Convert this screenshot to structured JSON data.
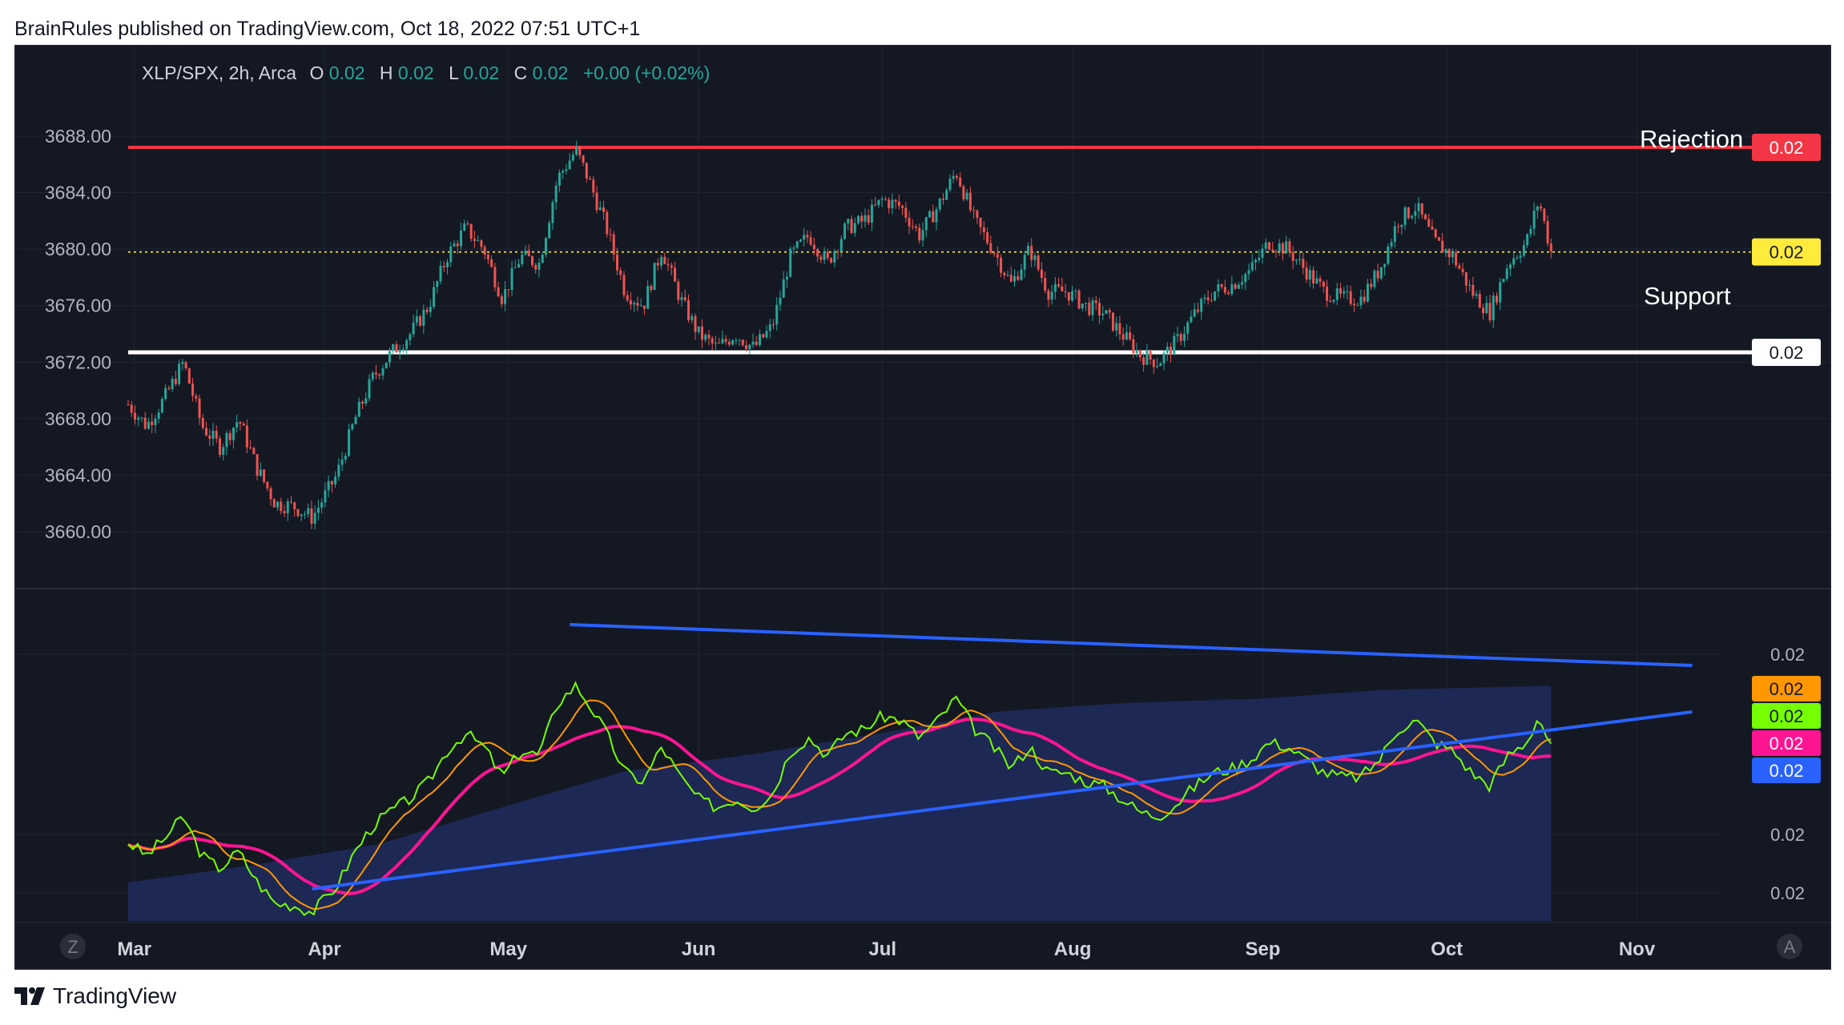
{
  "header": {
    "publisher_line": "BrainRules published on TradingView.com, Oct 18, 2022 07:51 UTC+1"
  },
  "legend": {
    "symbol": "XLP/SPX, 2h, Arca",
    "o_label": "O",
    "o_value": "0.02",
    "h_label": "H",
    "h_value": "0.02",
    "l_label": "L",
    "l_value": "0.02",
    "c_label": "C",
    "c_value": "0.02",
    "change": "+0.00 (+0.02%)"
  },
  "annotations": {
    "rejection": "Rejection",
    "support": "Support"
  },
  "price_tags": {
    "rejection": "0.02",
    "current": "0.02",
    "support": "0.02"
  },
  "indicator_tags": [
    "0.02",
    "0.02",
    "0.02",
    "0.02",
    "0.02"
  ],
  "indicator_axis_labels": [
    "0.02",
    "0.02",
    "0.02"
  ],
  "x_labels": [
    "Mar",
    "Apr",
    "May",
    "Jun",
    "Jul",
    "Aug",
    "Sep",
    "Oct",
    "Nov"
  ],
  "corner_buttons": {
    "left": "Z",
    "right": "A"
  },
  "footer": {
    "brand": "TradingView"
  },
  "colors": {
    "background": "#141823",
    "up": "#26a69a",
    "down": "#ef5350",
    "rejection_line": "#f23645",
    "support_line": "#ffffff",
    "current_line": "#ffeb3b",
    "trendline": "#2962ff",
    "fast_line": "#76ff03",
    "orange_ma": "#ff9800",
    "magenta_ma": "#ff1493",
    "area_fill": "#1e2c5e"
  },
  "chart_data": {
    "type": "candlestick",
    "symbol": "XLP/SPX",
    "timeframe": "2h",
    "ylim": [
      3657,
      3691
    ],
    "y_ticks": [
      3660,
      3664,
      3668,
      3672,
      3676,
      3680,
      3684,
      3688
    ],
    "y_tick_labels": [
      "3660.00",
      "3664.00",
      "3668.00",
      "3672.00",
      "3676.00",
      "3680.00",
      "3684.00",
      "3688.00"
    ],
    "x_range": [
      "2022-02-28",
      "2022-11-20"
    ],
    "x_ticks": [
      "2022-03-01",
      "2022-04-01",
      "2022-05-01",
      "2022-06-01",
      "2022-07-01",
      "2022-08-01",
      "2022-09-01",
      "2022-10-01",
      "2022-11-01"
    ],
    "horizontal_levels": {
      "rejection": 3687.2,
      "current": 3679.8,
      "support": 3672.7
    },
    "price_path": [
      [
        "2022-02-28",
        3669.0
      ],
      [
        "2022-03-03",
        3667.5
      ],
      [
        "2022-03-06",
        3669.5
      ],
      [
        "2022-03-09",
        3672.0
      ],
      [
        "2022-03-12",
        3667.5
      ],
      [
        "2022-03-15",
        3666.0
      ],
      [
        "2022-03-18",
        3668.0
      ],
      [
        "2022-03-21",
        3664.5
      ],
      [
        "2022-03-24",
        3662.0
      ],
      [
        "2022-03-27",
        3661.8
      ],
      [
        "2022-03-30",
        3661.0
      ],
      [
        "2022-04-03",
        3664.0
      ],
      [
        "2022-04-06",
        3668.0
      ],
      [
        "2022-04-09",
        3671.0
      ],
      [
        "2022-04-12",
        3672.7
      ],
      [
        "2022-04-15",
        3674.0
      ],
      [
        "2022-04-18",
        3676.0
      ],
      [
        "2022-04-21",
        3679.5
      ],
      [
        "2022-04-24",
        3681.5
      ],
      [
        "2022-04-27",
        3680.0
      ],
      [
        "2022-04-30",
        3676.5
      ],
      [
        "2022-05-03",
        3679.5
      ],
      [
        "2022-05-06",
        3679.0
      ],
      [
        "2022-05-09",
        3685.0
      ],
      [
        "2022-05-12",
        3687.0
      ],
      [
        "2022-05-14",
        3685.0
      ],
      [
        "2022-05-17",
        3681.5
      ],
      [
        "2022-05-20",
        3677.0
      ],
      [
        "2022-05-23",
        3676.0
      ],
      [
        "2022-05-26",
        3680.0
      ],
      [
        "2022-05-29",
        3676.5
      ],
      [
        "2022-06-01",
        3674.0
      ],
      [
        "2022-06-04",
        3673.0
      ],
      [
        "2022-06-07",
        3674.0
      ],
      [
        "2022-06-10",
        3673.0
      ],
      [
        "2022-06-13",
        3674.5
      ],
      [
        "2022-06-16",
        3679.5
      ],
      [
        "2022-06-19",
        3681.0
      ],
      [
        "2022-06-22",
        3679.0
      ],
      [
        "2022-06-25",
        3681.5
      ],
      [
        "2022-06-28",
        3682.0
      ],
      [
        "2022-07-01",
        3683.5
      ],
      [
        "2022-07-04",
        3683.0
      ],
      [
        "2022-07-07",
        3681.0
      ],
      [
        "2022-07-10",
        3683.0
      ],
      [
        "2022-07-13",
        3685.5
      ],
      [
        "2022-07-16",
        3682.0
      ],
      [
        "2022-07-19",
        3680.0
      ],
      [
        "2022-07-22",
        3677.5
      ],
      [
        "2022-07-25",
        3680.0
      ],
      [
        "2022-07-28",
        3677.0
      ],
      [
        "2022-07-31",
        3677.0
      ],
      [
        "2022-08-03",
        3676.0
      ],
      [
        "2022-08-06",
        3675.5
      ],
      [
        "2022-08-09",
        3674.0
      ],
      [
        "2022-08-12",
        3672.5
      ],
      [
        "2022-08-15",
        3672.0
      ],
      [
        "2022-08-18",
        3673.5
      ],
      [
        "2022-08-21",
        3675.5
      ],
      [
        "2022-08-24",
        3677.0
      ],
      [
        "2022-08-27",
        3677.5
      ],
      [
        "2022-08-30",
        3678.5
      ],
      [
        "2022-09-02",
        3680.5
      ],
      [
        "2022-09-05",
        3680.0
      ],
      [
        "2022-09-08",
        3678.5
      ],
      [
        "2022-09-11",
        3677.0
      ],
      [
        "2022-09-14",
        3676.5
      ],
      [
        "2022-09-17",
        3676.5
      ],
      [
        "2022-09-20",
        3678.5
      ],
      [
        "2022-09-23",
        3682.0
      ],
      [
        "2022-09-26",
        3683.0
      ],
      [
        "2022-09-29",
        3680.5
      ],
      [
        "2022-10-02",
        3679.5
      ],
      [
        "2022-10-05",
        3677.0
      ],
      [
        "2022-10-08",
        3675.5
      ],
      [
        "2022-10-11",
        3679.0
      ],
      [
        "2022-10-14",
        3680.5
      ],
      [
        "2022-10-16",
        3683.5
      ],
      [
        "2022-10-18",
        3679.8
      ]
    ],
    "indicator": {
      "area_path": [
        [
          "2022-02-28",
          0.0
        ],
        [
          "2022-03-20",
          0.08
        ],
        [
          "2022-04-10",
          0.18
        ],
        [
          "2022-05-01",
          0.36
        ],
        [
          "2022-05-20",
          0.52
        ],
        [
          "2022-06-10",
          0.6
        ],
        [
          "2022-07-01",
          0.7
        ],
        [
          "2022-07-20",
          0.8
        ],
        [
          "2022-08-10",
          0.84
        ],
        [
          "2022-09-01",
          0.86
        ],
        [
          "2022-09-20",
          0.9
        ],
        [
          "2022-10-18",
          0.92
        ]
      ],
      "upper_trendline": [
        [
          "2022-05-11",
          1.0
        ],
        [
          "2022-11-10",
          0.85
        ]
      ],
      "lower_trendline": [
        [
          "2022-03-30",
          0.0
        ],
        [
          "2022-11-10",
          0.67
        ]
      ]
    }
  }
}
